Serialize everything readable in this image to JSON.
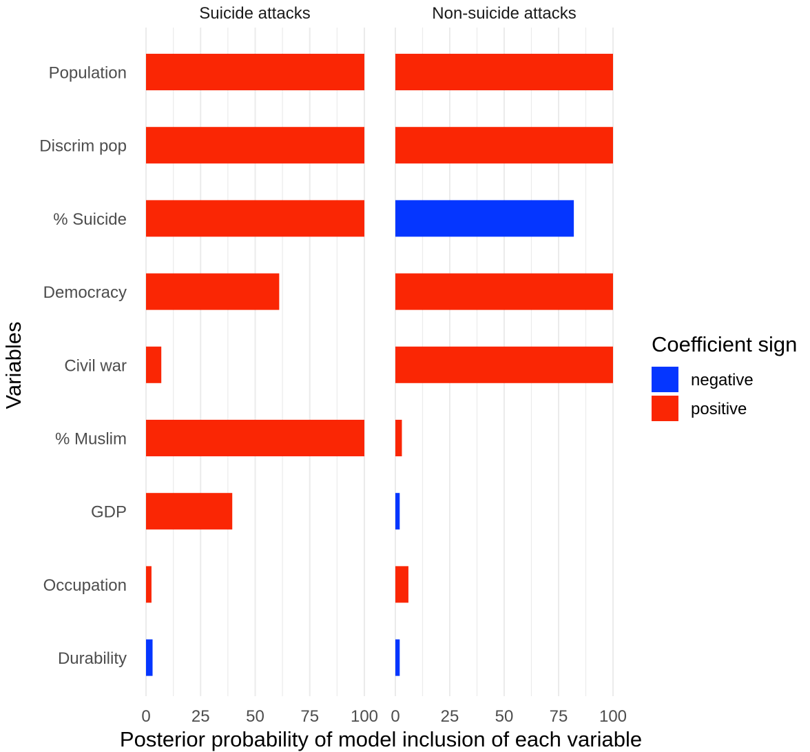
{
  "chart_data": {
    "type": "bar",
    "orientation": "horizontal",
    "xlabel": "Posterior probability of model inclusion of each variable",
    "ylabel": "Variables",
    "xlim": [
      0,
      100
    ],
    "x_ticks": [
      "0",
      "25",
      "50",
      "75",
      "100"
    ],
    "categories": [
      "Population",
      "Discrim pop",
      "% Suicide",
      "Democracy",
      "Civil war",
      "% Muslim",
      "GDP",
      "Occupation",
      "Durability"
    ],
    "panels": [
      {
        "title": "Suicide attacks",
        "values": [
          100,
          100,
          100,
          61,
          7,
          100,
          39.5,
          2.5,
          3
        ],
        "signs": [
          "positive",
          "positive",
          "positive",
          "positive",
          "positive",
          "positive",
          "positive",
          "positive",
          "negative"
        ]
      },
      {
        "title": "Non-suicide attacks",
        "values": [
          100,
          100,
          82,
          100,
          100,
          3,
          2,
          6,
          2
        ],
        "signs": [
          "positive",
          "positive",
          "negative",
          "positive",
          "positive",
          "positive",
          "negative",
          "positive",
          "negative"
        ]
      }
    ],
    "legend": {
      "title": "Coefficient sign",
      "placement": "right",
      "entries": [
        {
          "key": "negative",
          "label": "negative",
          "color": "#0536ff"
        },
        {
          "key": "positive",
          "label": "positive",
          "color": "#fa2604"
        }
      ]
    },
    "grid": true,
    "colors": {
      "grid": "#ebebeb",
      "text": "#4d4d4d",
      "title": "#1a1a1a"
    }
  }
}
